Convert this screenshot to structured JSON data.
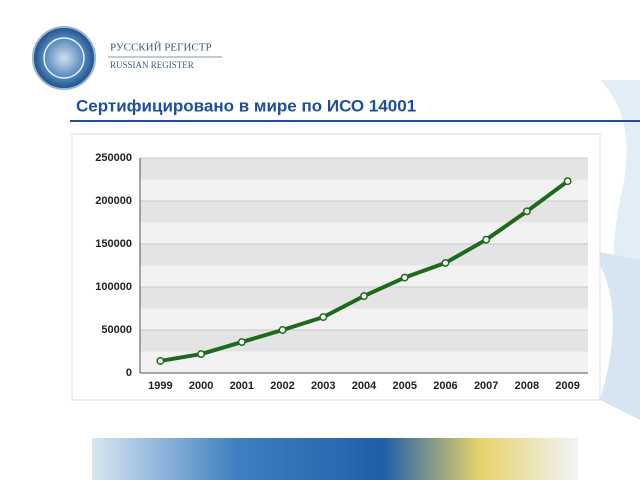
{
  "header": {
    "brand": "РУССКИЙ РЕГИСТР",
    "brand_en": "RUSSIAN REGISTER"
  },
  "chart_data": {
    "type": "line",
    "title": "Сертифицировано в мире по ИСО 14001",
    "categories": [
      "1999",
      "2000",
      "2001",
      "2002",
      "2003",
      "2004",
      "2005",
      "2006",
      "2007",
      "2008",
      "2009"
    ],
    "series": [
      {
        "name": null,
        "color": "#1d6a1d",
        "values": [
          14000,
          22000,
          36000,
          50000,
          65000,
          89500,
          111000,
          128000,
          155000,
          188000,
          223000
        ]
      }
    ],
    "ylim": [
      0,
      250000
    ],
    "yticks": [
      0,
      50000,
      100000,
      150000,
      200000,
      250000
    ],
    "grid": true
  }
}
